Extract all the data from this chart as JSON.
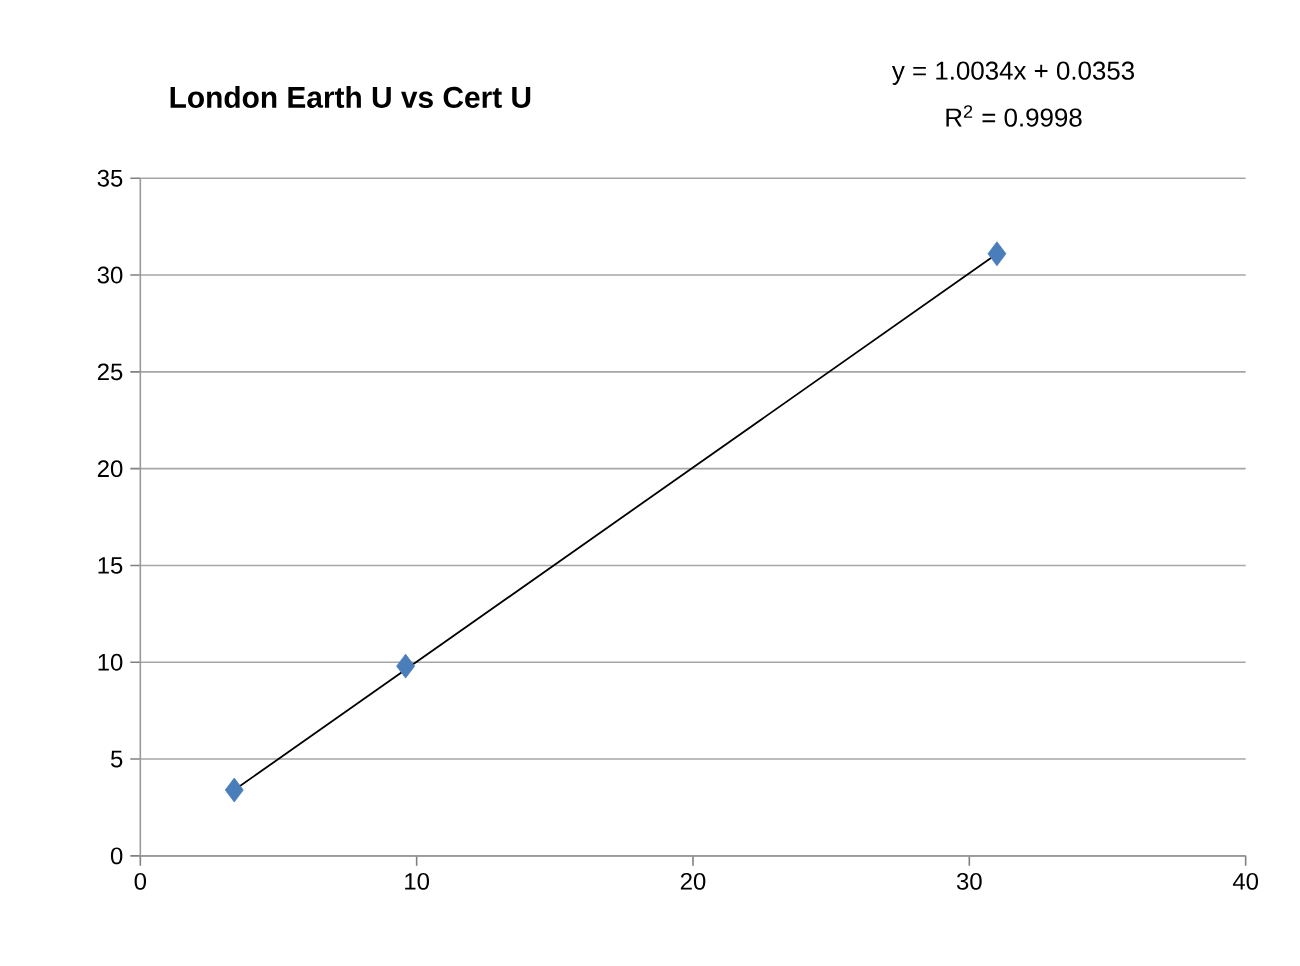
{
  "chart_data": {
    "type": "scatter",
    "title": "London Earth U vs Cert U",
    "annotations": [
      "y = 1.0034x + 0.0353",
      "R$^{2}$ = 0.9998"
    ],
    "series": [
      {
        "color": "#4a7ebb",
        "marker": "diamond",
        "x": [
          3.4,
          9.6,
          31.0
        ],
        "values": [
          3.4,
          9.8,
          31.1
        ]
      },
      {
        "type": "line",
        "color": "#000000",
        "marker": "none",
        "x": [
          3.4,
          31.0
        ],
        "values": [
          3.4,
          31.1
        ]
      }
    ],
    "xlim": [
      0,
      40
    ],
    "xticks": [
      0,
      10,
      20,
      30,
      40
    ],
    "ylim": [
      0,
      35
    ],
    "yticks": [
      0,
      5,
      10,
      15,
      20,
      25,
      30,
      35
    ],
    "grid": "y"
  }
}
